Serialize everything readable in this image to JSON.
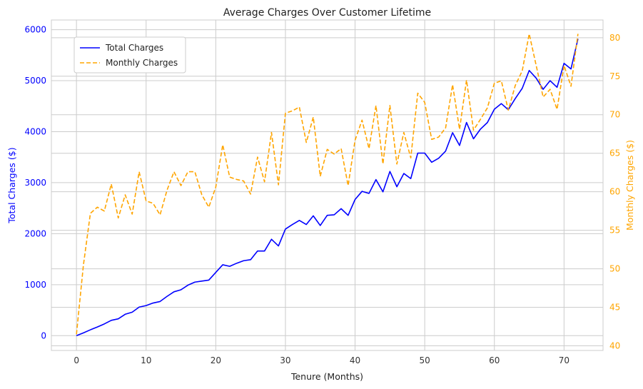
{
  "chart_data": {
    "type": "line",
    "title": "Average Charges Over Customer Lifetime",
    "xlabel": "Tenure (Months)",
    "ylabel_left": "Total Charges ($)",
    "ylabel_right": "Monthly Charges ($)",
    "xlim": [
      -3.6,
      75.6
    ],
    "ylim_left": [
      -290,
      6190
    ],
    "ylim_right": [
      39.4,
      82.3
    ],
    "x_ticks": [
      0,
      10,
      20,
      30,
      40,
      50,
      60,
      70
    ],
    "y_left_ticks": [
      0,
      1000,
      2000,
      3000,
      4000,
      5000,
      6000
    ],
    "y_right_ticks": [
      40,
      45,
      50,
      55,
      60,
      65,
      70,
      75,
      80
    ],
    "grid": true,
    "legend_position": "top-left",
    "colors": {
      "left_axis": "#0000ff",
      "right_axis": "#ffa500"
    },
    "series": [
      {
        "name": "Total Charges",
        "axis": "left",
        "color": "#0000ff",
        "style": "solid",
        "x": [
          0,
          1,
          2,
          3,
          4,
          5,
          6,
          7,
          8,
          9,
          10,
          11,
          12,
          13,
          14,
          15,
          16,
          17,
          18,
          19,
          20,
          21,
          22,
          23,
          24,
          25,
          26,
          27,
          28,
          29,
          30,
          31,
          32,
          33,
          34,
          35,
          36,
          37,
          38,
          39,
          40,
          41,
          42,
          43,
          44,
          45,
          46,
          47,
          48,
          49,
          50,
          51,
          52,
          53,
          54,
          55,
          56,
          57,
          58,
          59,
          60,
          61,
          62,
          63,
          64,
          65,
          66,
          67,
          68,
          69,
          70,
          71,
          72
        ],
        "values": [
          0,
          55,
          115,
          170,
          230,
          300,
          330,
          420,
          460,
          560,
          590,
          640,
          670,
          770,
          860,
          900,
          990,
          1050,
          1070,
          1090,
          1240,
          1390,
          1360,
          1420,
          1470,
          1490,
          1660,
          1660,
          1890,
          1760,
          2090,
          2180,
          2260,
          2180,
          2350,
          2160,
          2360,
          2370,
          2490,
          2360,
          2670,
          2830,
          2790,
          3060,
          2820,
          3220,
          2920,
          3180,
          3080,
          3580,
          3580,
          3400,
          3480,
          3620,
          3980,
          3730,
          4180,
          3860,
          4050,
          4180,
          4440,
          4550,
          4430,
          4650,
          4850,
          5200,
          5050,
          4830,
          5000,
          4870,
          5340,
          5230,
          5820
        ]
      },
      {
        "name": "Monthly Charges",
        "axis": "right",
        "color": "#ffa500",
        "style": "dashed",
        "x": [
          0,
          1,
          2,
          3,
          4,
          5,
          6,
          7,
          8,
          9,
          10,
          11,
          12,
          13,
          14,
          15,
          16,
          17,
          18,
          19,
          20,
          21,
          22,
          23,
          24,
          25,
          26,
          27,
          28,
          29,
          30,
          31,
          32,
          33,
          34,
          35,
          36,
          37,
          38,
          39,
          40,
          41,
          42,
          43,
          44,
          45,
          46,
          47,
          48,
          49,
          50,
          51,
          52,
          53,
          54,
          55,
          56,
          57,
          58,
          59,
          60,
          61,
          62,
          63,
          64,
          65,
          66,
          67,
          68,
          69,
          70,
          71,
          72
        ],
        "values": [
          41.5,
          50.5,
          57.2,
          58.0,
          57.5,
          61.0,
          56.6,
          59.6,
          57.1,
          62.6,
          58.8,
          58.5,
          57.0,
          60.2,
          62.6,
          60.8,
          62.6,
          62.6,
          59.6,
          58.0,
          60.6,
          66.1,
          61.9,
          61.6,
          61.4,
          59.7,
          64.5,
          61.3,
          67.7,
          60.9,
          70.2,
          70.5,
          71.0,
          66.4,
          69.7,
          62.0,
          65.5,
          64.9,
          65.6,
          60.8,
          66.7,
          69.3,
          65.6,
          71.2,
          63.6,
          71.2,
          63.6,
          67.7,
          64.4,
          72.8,
          71.6,
          66.8,
          67.1,
          68.3,
          73.9,
          68.1,
          74.5,
          68.0,
          69.4,
          70.9,
          74.1,
          74.4,
          70.6,
          73.8,
          75.7,
          80.5,
          76.4,
          72.3,
          73.3,
          70.7,
          76.4,
          73.7,
          80.5
        ]
      }
    ]
  }
}
